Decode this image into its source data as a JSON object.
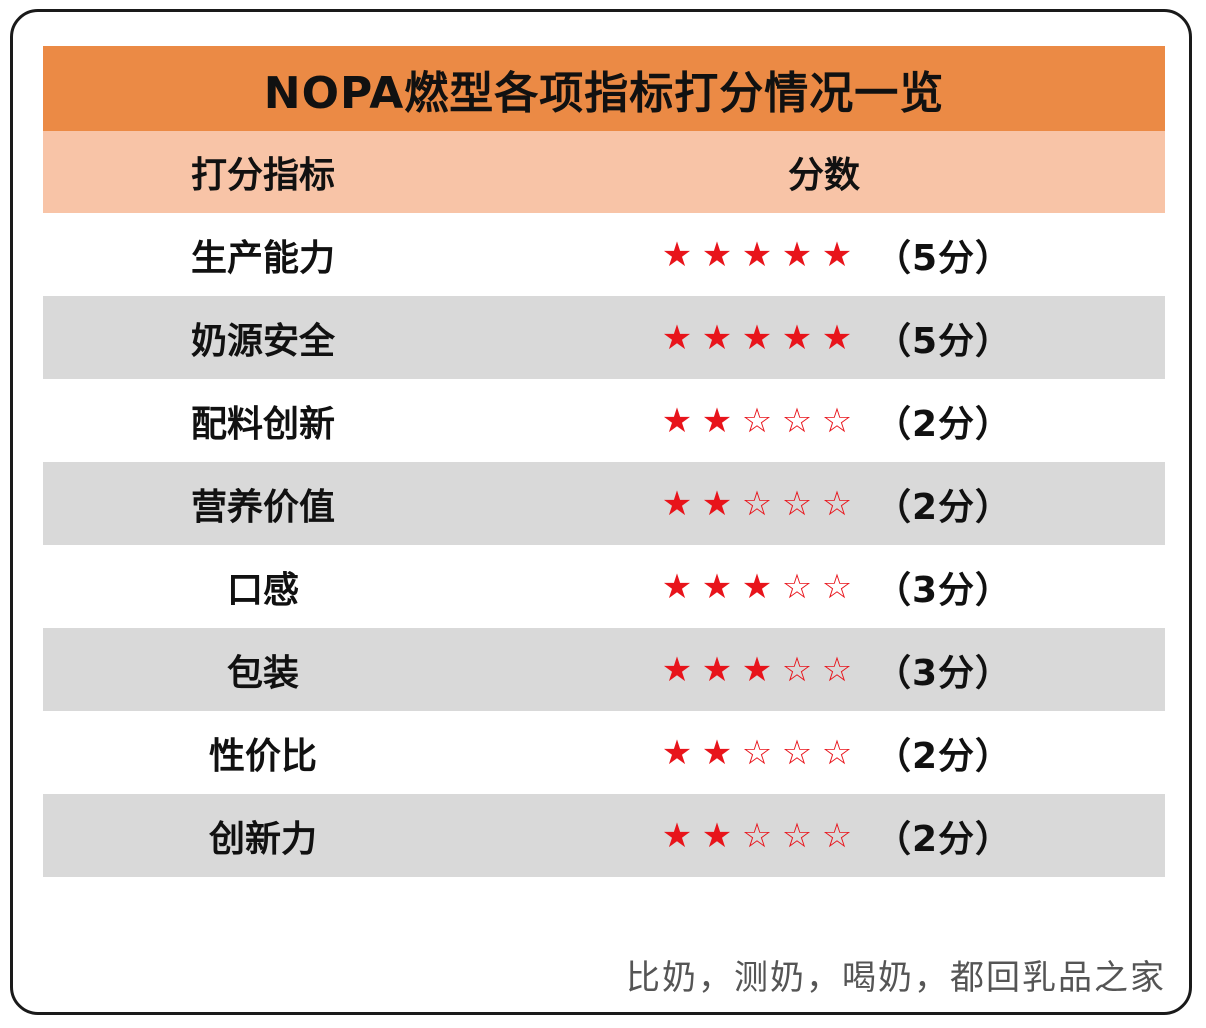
{
  "title": "NOPA燃型各项指标打分情况一览",
  "header": {
    "label_col": "打分指标",
    "score_col": "分数"
  },
  "rows": [
    {
      "label": "生产能力",
      "rating": 5,
      "max": 5,
      "score_text": "（5分）"
    },
    {
      "label": "奶源安全",
      "rating": 5,
      "max": 5,
      "score_text": "（5分）"
    },
    {
      "label": "配料创新",
      "rating": 2,
      "max": 5,
      "score_text": "（2分）"
    },
    {
      "label": "营养价值",
      "rating": 2,
      "max": 5,
      "score_text": "（2分）"
    },
    {
      "label": "口感",
      "rating": 3,
      "max": 5,
      "score_text": "（3分）"
    },
    {
      "label": "包装",
      "rating": 3,
      "max": 5,
      "score_text": "（3分）"
    },
    {
      "label": "性价比",
      "rating": 2,
      "max": 5,
      "score_text": "（2分）"
    },
    {
      "label": "创新力",
      "rating": 2,
      "max": 5,
      "score_text": "（2分）"
    }
  ],
  "watermark": "比奶，测奶，喝奶，都回乳品之家",
  "colors": {
    "title_bg": "#eb8a45",
    "header_bg": "#f8c4a7",
    "shaded_row_bg": "#d9d9d9",
    "star_color": "#e8141b"
  },
  "icons": {
    "full_star": "filled-star-icon",
    "empty_star": "outline-star-icon"
  }
}
